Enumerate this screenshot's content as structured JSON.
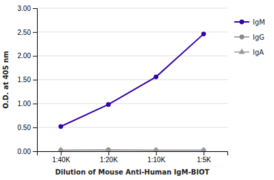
{
  "chart_data": {
    "type": "line",
    "xlabel": "Dilution of Mouse Anti-Human IgM-BIOT",
    "ylabel": "O.D. at 405 nm",
    "categories": [
      "1:40K",
      "1:20K",
      "1:10K",
      "1:5K"
    ],
    "series": [
      {
        "name": "IgM",
        "color": "#3300aa",
        "marker": "circle",
        "values": [
          0.52,
          0.98,
          1.56,
          2.46
        ]
      },
      {
        "name": "IgG",
        "color": "#888888",
        "marker": "circle",
        "values": [
          0.02,
          0.03,
          0.02,
          0.02
        ]
      },
      {
        "name": "IgA",
        "color": "#999999",
        "marker": "triangle",
        "values": [
          0.02,
          0.02,
          0.02,
          0.02
        ]
      }
    ],
    "ylim": [
      0.0,
      3.0
    ],
    "yticks": [
      {
        "value": 0.0,
        "label": "0.00"
      },
      {
        "value": 0.5,
        "label": "0.50"
      },
      {
        "value": 1.0,
        "label": "1.00"
      },
      {
        "value": 1.5,
        "label": "1.50"
      },
      {
        "value": 2.0,
        "label": "2.00"
      },
      {
        "value": 2.5,
        "label": "2.50"
      },
      {
        "value": 3.0,
        "label": "3.00"
      }
    ],
    "grid": true,
    "legend": "right"
  }
}
